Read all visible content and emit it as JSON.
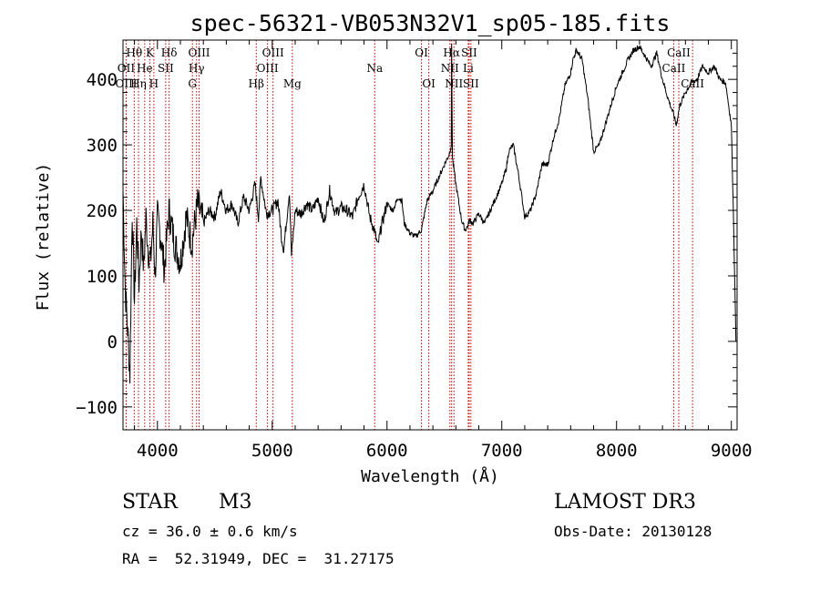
{
  "chart_data": {
    "type": "line",
    "title": "spec-56321-VB053N32V1_sp05-185.fits",
    "xlabel": "Wavelength (Å)",
    "ylabel": "Flux (relative)",
    "xlim": [
      3700,
      9050
    ],
    "ylim": [
      -135,
      460
    ],
    "x_ticks": [
      4000,
      5000,
      6000,
      7000,
      8000,
      9000
    ],
    "y_ticks": [
      -100,
      0,
      100,
      200,
      300,
      400
    ],
    "x_tick_labels": [
      "4000",
      "5000",
      "6000",
      "7000",
      "8000",
      "9000"
    ],
    "y_tick_labels": [
      "−100",
      "0",
      "100",
      "200",
      "300",
      "400"
    ],
    "series": [
      {
        "name": "flux",
        "x": [
          3700,
          3720,
          3740,
          3760,
          3780,
          3800,
          3820,
          3840,
          3860,
          3880,
          3900,
          3920,
          3940,
          3960,
          3980,
          4000,
          4030,
          4060,
          4100,
          4150,
          4200,
          4250,
          4300,
          4350,
          4400,
          4450,
          4500,
          4550,
          4600,
          4650,
          4700,
          4750,
          4800,
          4850,
          4880,
          4900,
          4950,
          5000,
          5050,
          5080,
          5100,
          5150,
          5168,
          5200,
          5250,
          5300,
          5350,
          5400,
          5450,
          5500,
          5550,
          5600,
          5650,
          5700,
          5750,
          5800,
          5850,
          5890,
          5920,
          5950,
          6000,
          6050,
          6100,
          6130,
          6150,
          6200,
          6250,
          6300,
          6350,
          6400,
          6450,
          6500,
          6540,
          6560,
          6563,
          6570,
          6600,
          6650,
          6680,
          6700,
          6720,
          6750,
          6800,
          6850,
          6900,
          6950,
          7000,
          7040,
          7060,
          7100,
          7150,
          7200,
          7250,
          7300,
          7350,
          7400,
          7450,
          7500,
          7550,
          7600,
          7620,
          7650,
          7700,
          7750,
          7800,
          7850,
          7900,
          7950,
          8000,
          8050,
          8100,
          8150,
          8200,
          8250,
          8300,
          8350,
          8400,
          8450,
          8500,
          8520,
          8550,
          8600,
          8650,
          8700,
          8750,
          8800,
          8850,
          8900,
          8950,
          9000,
          9020,
          9040
        ],
        "y": [
          230,
          80,
          20,
          -50,
          200,
          60,
          180,
          90,
          170,
          110,
          190,
          140,
          120,
          180,
          100,
          190,
          160,
          110,
          200,
          150,
          120,
          190,
          150,
          210,
          180,
          200,
          190,
          230,
          200,
          210,
          180,
          220,
          200,
          240,
          190,
          250,
          195,
          200,
          215,
          160,
          140,
          230,
          130,
          200,
          195,
          210,
          200,
          220,
          180,
          230,
          195,
          205,
          200,
          190,
          220,
          240,
          190,
          170,
          145,
          175,
          210,
          200,
          220,
          215,
          180,
          165,
          160,
          170,
          215,
          230,
          250,
          270,
          285,
          300,
          455,
          280,
          240,
          185,
          170,
          175,
          185,
          180,
          195,
          180,
          200,
          220,
          240,
          265,
          290,
          300,
          250,
          190,
          200,
          225,
          270,
          270,
          310,
          340,
          390,
          410,
          430,
          445,
          430,
          370,
          290,
          300,
          330,
          360,
          390,
          410,
          430,
          445,
          450,
          435,
          420,
          440,
          400,
          370,
          345,
          330,
          360,
          380,
          395,
          400,
          420,
          410,
          420,
          400,
          395,
          330,
          180,
          0
        ]
      }
    ],
    "spectral_lines": [
      {
        "label": "Hθ",
        "wl": 3798,
        "row": 1
      },
      {
        "label": "OII",
        "wl": 3727,
        "row": 2
      },
      {
        "label": "OIII",
        "wl": 3728,
        "row": 3
      },
      {
        "label": "Hη",
        "wl": 3835,
        "row": 3
      },
      {
        "label": "K",
        "wl": 3934,
        "row": 1
      },
      {
        "label": "He",
        "wl": 3889,
        "row": 2
      },
      {
        "label": "H",
        "wl": 3969,
        "row": 3
      },
      {
        "label": "Hδ",
        "wl": 4102,
        "row": 1
      },
      {
        "label": "SII",
        "wl": 4072,
        "row": 2
      },
      {
        "label": "OIII",
        "wl": 4363,
        "row": 1
      },
      {
        "label": "Hγ",
        "wl": 4341,
        "row": 2
      },
      {
        "label": "G",
        "wl": 4305,
        "row": 3
      },
      {
        "label": "Hβ",
        "wl": 4861,
        "row": 3
      },
      {
        "label": "OIII",
        "wl": 5007,
        "row": 1
      },
      {
        "label": "OIII",
        "wl": 4959,
        "row": 2
      },
      {
        "label": "Mg",
        "wl": 5175,
        "row": 3
      },
      {
        "label": "Na",
        "wl": 5893,
        "row": 2
      },
      {
        "label": "OI",
        "wl": 6300,
        "row": 1
      },
      {
        "label": "OI",
        "wl": 6364,
        "row": 3
      },
      {
        "label": "Hα",
        "wl": 6563,
        "row": 1
      },
      {
        "label": "NII",
        "wl": 6548,
        "row": 2
      },
      {
        "label": "NII",
        "wl": 6583,
        "row": 3
      },
      {
        "label": "SII",
        "wl": 6716,
        "row": 1
      },
      {
        "label": "Li",
        "wl": 6708,
        "row": 2
      },
      {
        "label": "SII",
        "wl": 6731,
        "row": 3
      },
      {
        "label": "CaII",
        "wl": 8542,
        "row": 1
      },
      {
        "label": "CaII",
        "wl": 8498,
        "row": 2
      },
      {
        "label": "CaII",
        "wl": 8662,
        "row": 3
      }
    ]
  },
  "info": {
    "object_class": "STAR",
    "subclass": "M3",
    "survey": "LAMOST DR3",
    "cz": "cz = 36.0 ± 0.6 km/s",
    "obs_date": "Obs-Date: 20130128",
    "coords": "RA =  52.31949, DEC =  31.27175"
  },
  "colors": {
    "line": "#000000",
    "marker": "#c00000",
    "axes": "#000000"
  }
}
